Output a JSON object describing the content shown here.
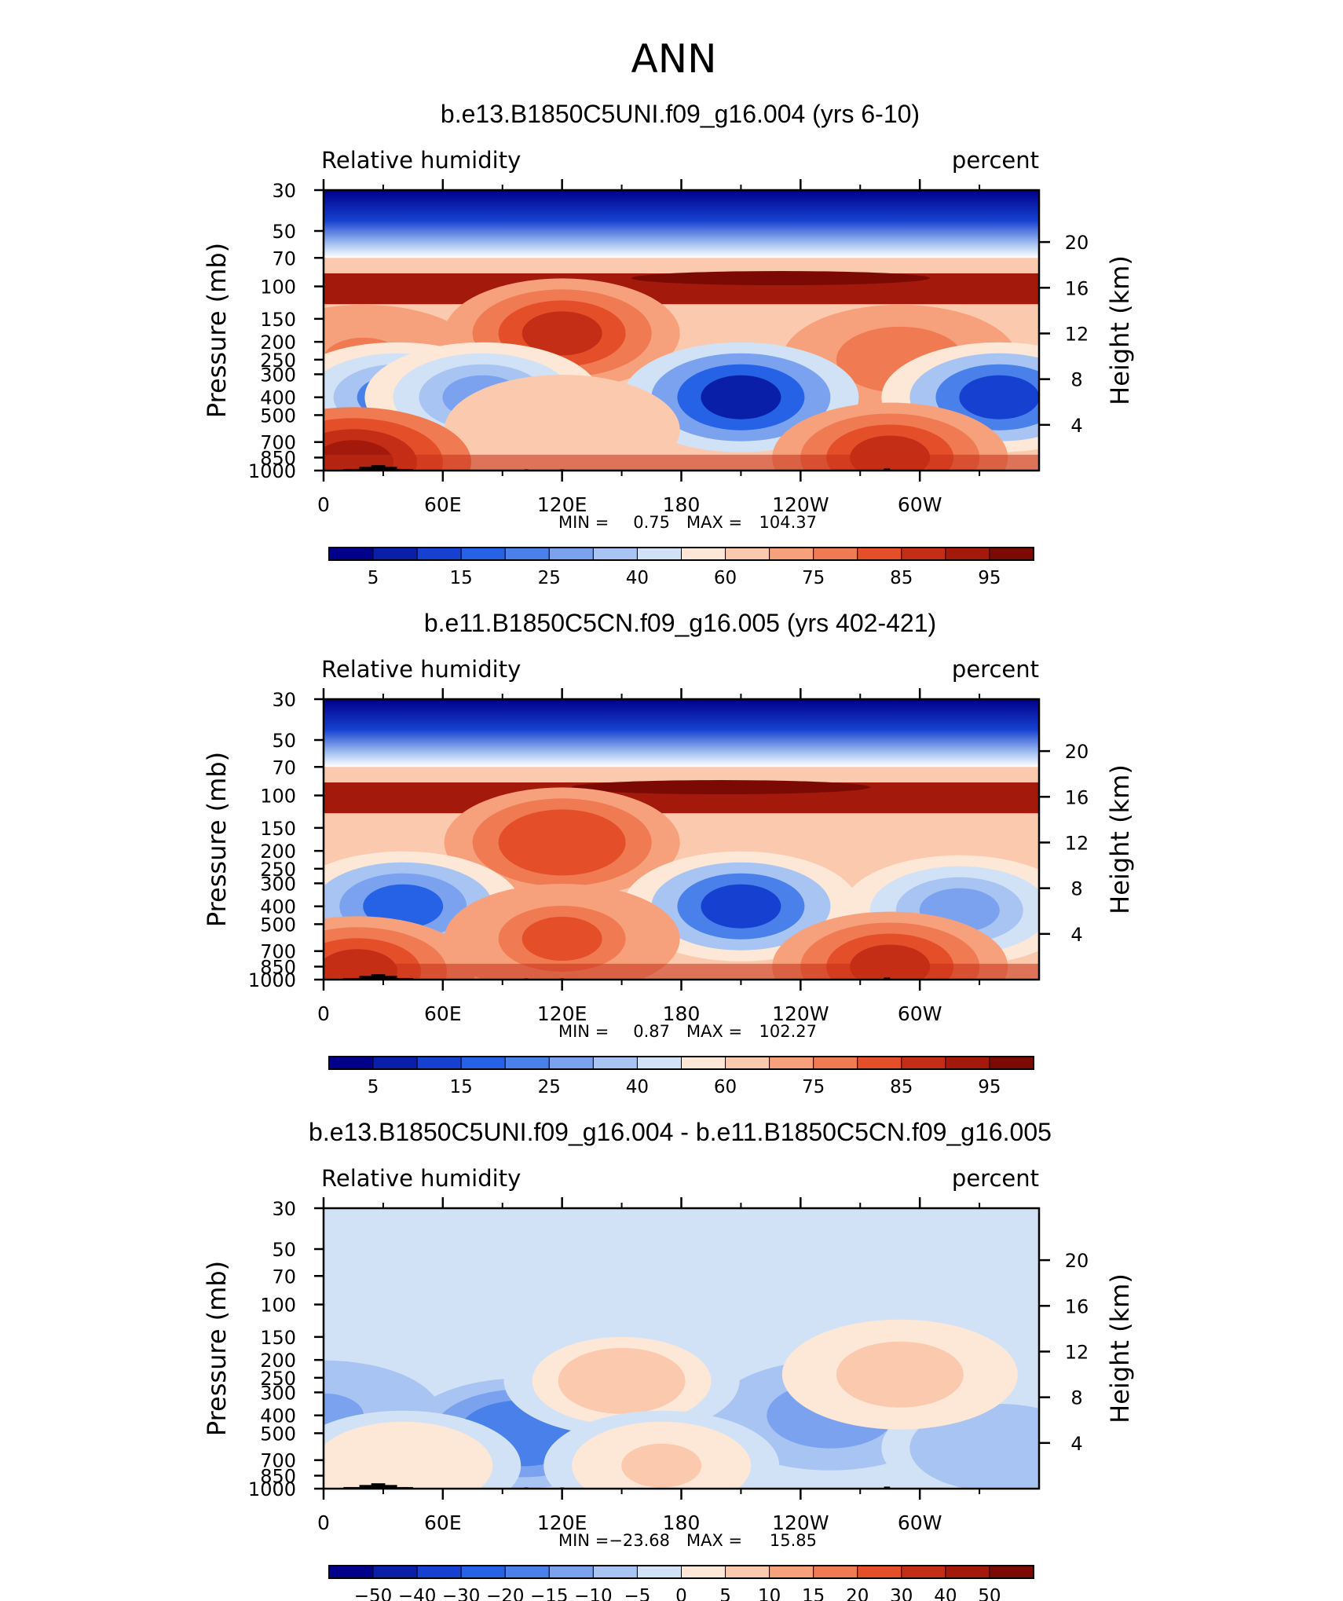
{
  "figure": {
    "title": "ANN"
  },
  "chart_data": [
    {
      "type": "contour",
      "title": "b.e13.B1850C5UNI.f09_g16.004 (yrs 6-10)",
      "variable": "Relative humidity",
      "units": "percent",
      "ylabel": "Pressure (mb)",
      "ylabel_right": "Height (km)",
      "x_ticks": [
        "0",
        "60E",
        "120E",
        "180",
        "120W",
        "60W"
      ],
      "y_ticks": [
        "30",
        "50",
        "70",
        "100",
        "150",
        "200",
        "250",
        "300",
        "400",
        "500",
        "700",
        "850",
        "1000"
      ],
      "y_ticks_right": [
        "20",
        "16",
        "12",
        "8",
        "4"
      ],
      "stats": {
        "min_label": "MIN =",
        "min": "0.75",
        "max_label": "MAX =",
        "max": "104.37"
      },
      "colorbar": {
        "labels": [
          "5",
          "15",
          "25",
          "40",
          "60",
          "75",
          "85",
          "95"
        ],
        "colors": [
          "#00008b",
          "#0a1fa8",
          "#1641d0",
          "#2562e6",
          "#4a80ea",
          "#7aa2ee",
          "#a8c4f2",
          "#d2e2f6",
          "#fde7d7",
          "#fbc9ad",
          "#f6a17c",
          "#f07a52",
          "#e44f2a",
          "#c52e16",
          "#a31a0c",
          "#7b0a04"
        ]
      },
      "fields": [
        {
          "shape": "topband",
          "value": 5
        },
        {
          "shape": "band",
          "from": "100",
          "value": 92
        },
        {
          "shape": "blob",
          "lon": 0,
          "p": 850,
          "value": 88
        },
        {
          "shape": "blob",
          "lon": 120,
          "p": 180,
          "value": 82
        },
        {
          "shape": "blob",
          "lon": 20,
          "p": 250,
          "value": 70
        },
        {
          "shape": "blob",
          "lon": 290,
          "p": 250,
          "value": 72
        },
        {
          "shape": "blob",
          "lon": 37,
          "p": 400,
          "value": 30
        },
        {
          "shape": "blob",
          "lon": 80,
          "p": 400,
          "value": 35
        },
        {
          "shape": "blob",
          "lon": 210,
          "p": 400,
          "value": 12
        },
        {
          "shape": "blob",
          "lon": 340,
          "p": 400,
          "value": 18
        },
        {
          "shape": "blob",
          "lon": 120,
          "p": 600,
          "value": 62
        },
        {
          "shape": "blob",
          "lon": 15,
          "p": 900,
          "value": 90
        },
        {
          "shape": "blob",
          "lon": 285,
          "p": 850,
          "value": 86
        }
      ]
    },
    {
      "type": "contour",
      "title": "b.e11.B1850C5CN.f09_g16.005 (yrs 402-421)",
      "variable": "Relative humidity",
      "units": "percent",
      "ylabel": "Pressure (mb)",
      "ylabel_right": "Height (km)",
      "x_ticks": [
        "0",
        "60E",
        "120E",
        "180",
        "120W",
        "60W"
      ],
      "y_ticks": [
        "30",
        "50",
        "70",
        "100",
        "150",
        "200",
        "250",
        "300",
        "400",
        "500",
        "700",
        "850",
        "1000"
      ],
      "y_ticks_right": [
        "20",
        "16",
        "12",
        "8",
        "4"
      ],
      "stats": {
        "min_label": "MIN =",
        "min": "0.87",
        "max_label": "MAX =",
        "max": "102.27"
      },
      "colorbar": {
        "labels": [
          "5",
          "15",
          "25",
          "40",
          "60",
          "75",
          "85",
          "95"
        ],
        "colors": [
          "#00008b",
          "#0a1fa8",
          "#1641d0",
          "#2562e6",
          "#4a80ea",
          "#7aa2ee",
          "#a8c4f2",
          "#d2e2f6",
          "#fde7d7",
          "#fbc9ad",
          "#f6a17c",
          "#f07a52",
          "#e44f2a",
          "#c52e16",
          "#a31a0c",
          "#7b0a04"
        ]
      },
      "fields": [
        {
          "shape": "topband",
          "value": 5
        },
        {
          "shape": "band",
          "from": "100",
          "value": 90
        },
        {
          "shape": "blob",
          "lon": 0,
          "p": 850,
          "value": 86
        },
        {
          "shape": "blob",
          "lon": 120,
          "p": 180,
          "value": 80
        },
        {
          "shape": "blob",
          "lon": 40,
          "p": 400,
          "value": 22
        },
        {
          "shape": "blob",
          "lon": 210,
          "p": 400,
          "value": 14
        },
        {
          "shape": "blob",
          "lon": 320,
          "p": 420,
          "value": 35
        },
        {
          "shape": "blob",
          "lon": 120,
          "p": 600,
          "value": 75
        },
        {
          "shape": "blob",
          "lon": 17,
          "p": 900,
          "value": 86
        },
        {
          "shape": "blob",
          "lon": 285,
          "p": 850,
          "value": 84
        }
      ]
    },
    {
      "type": "contour",
      "title": "b.e13.B1850C5UNI.f09_g16.004 - b.e11.B1850C5CN.f09_g16.005",
      "variable": "Relative humidity",
      "units": "percent",
      "ylabel": "Pressure (mb)",
      "ylabel_right": "Height (km)",
      "x_ticks": [
        "0",
        "60E",
        "120E",
        "180",
        "120W",
        "60W"
      ],
      "y_ticks": [
        "30",
        "50",
        "70",
        "100",
        "150",
        "200",
        "250",
        "300",
        "400",
        "500",
        "700",
        "850",
        "1000"
      ],
      "y_ticks_right": [
        "20",
        "16",
        "12",
        "8",
        "4"
      ],
      "stats": {
        "min_label": "MIN =",
        "min": "−23.68",
        "max_label": "MAX =",
        "max": "15.85"
      },
      "colorbar": {
        "labels": [
          "−50",
          "−40",
          "−30",
          "−20",
          "−15",
          "−10",
          "−5",
          "0",
          "5",
          "10",
          "15",
          "20",
          "30",
          "40",
          "50"
        ],
        "colors": [
          "#00008b",
          "#0a1fa8",
          "#1641d0",
          "#2562e6",
          "#4a80ea",
          "#7aa2ee",
          "#a8c4f2",
          "#d2e2f6",
          "#fde7d7",
          "#fbc9ad",
          "#f6a17c",
          "#f07a52",
          "#e44f2a",
          "#c52e16",
          "#a31a0c",
          "#7b0a04"
        ]
      },
      "fields": [
        {
          "shape": "background",
          "value": -3
        },
        {
          "shape": "blob",
          "lon": 100,
          "p": 500,
          "value": -20
        },
        {
          "shape": "blob",
          "lon": 0,
          "p": 400,
          "value": -12
        },
        {
          "shape": "blob",
          "lon": 255,
          "p": 400,
          "value": -14
        },
        {
          "shape": "blob",
          "lon": 340,
          "p": 600,
          "value": -10
        },
        {
          "shape": "blob",
          "lon": 150,
          "p": 260,
          "value": 8
        },
        {
          "shape": "blob",
          "lon": 290,
          "p": 240,
          "value": 9
        },
        {
          "shape": "blob",
          "lon": 170,
          "p": 750,
          "value": 5
        },
        {
          "shape": "blob",
          "lon": 40,
          "p": 750,
          "value": 3
        }
      ]
    }
  ]
}
